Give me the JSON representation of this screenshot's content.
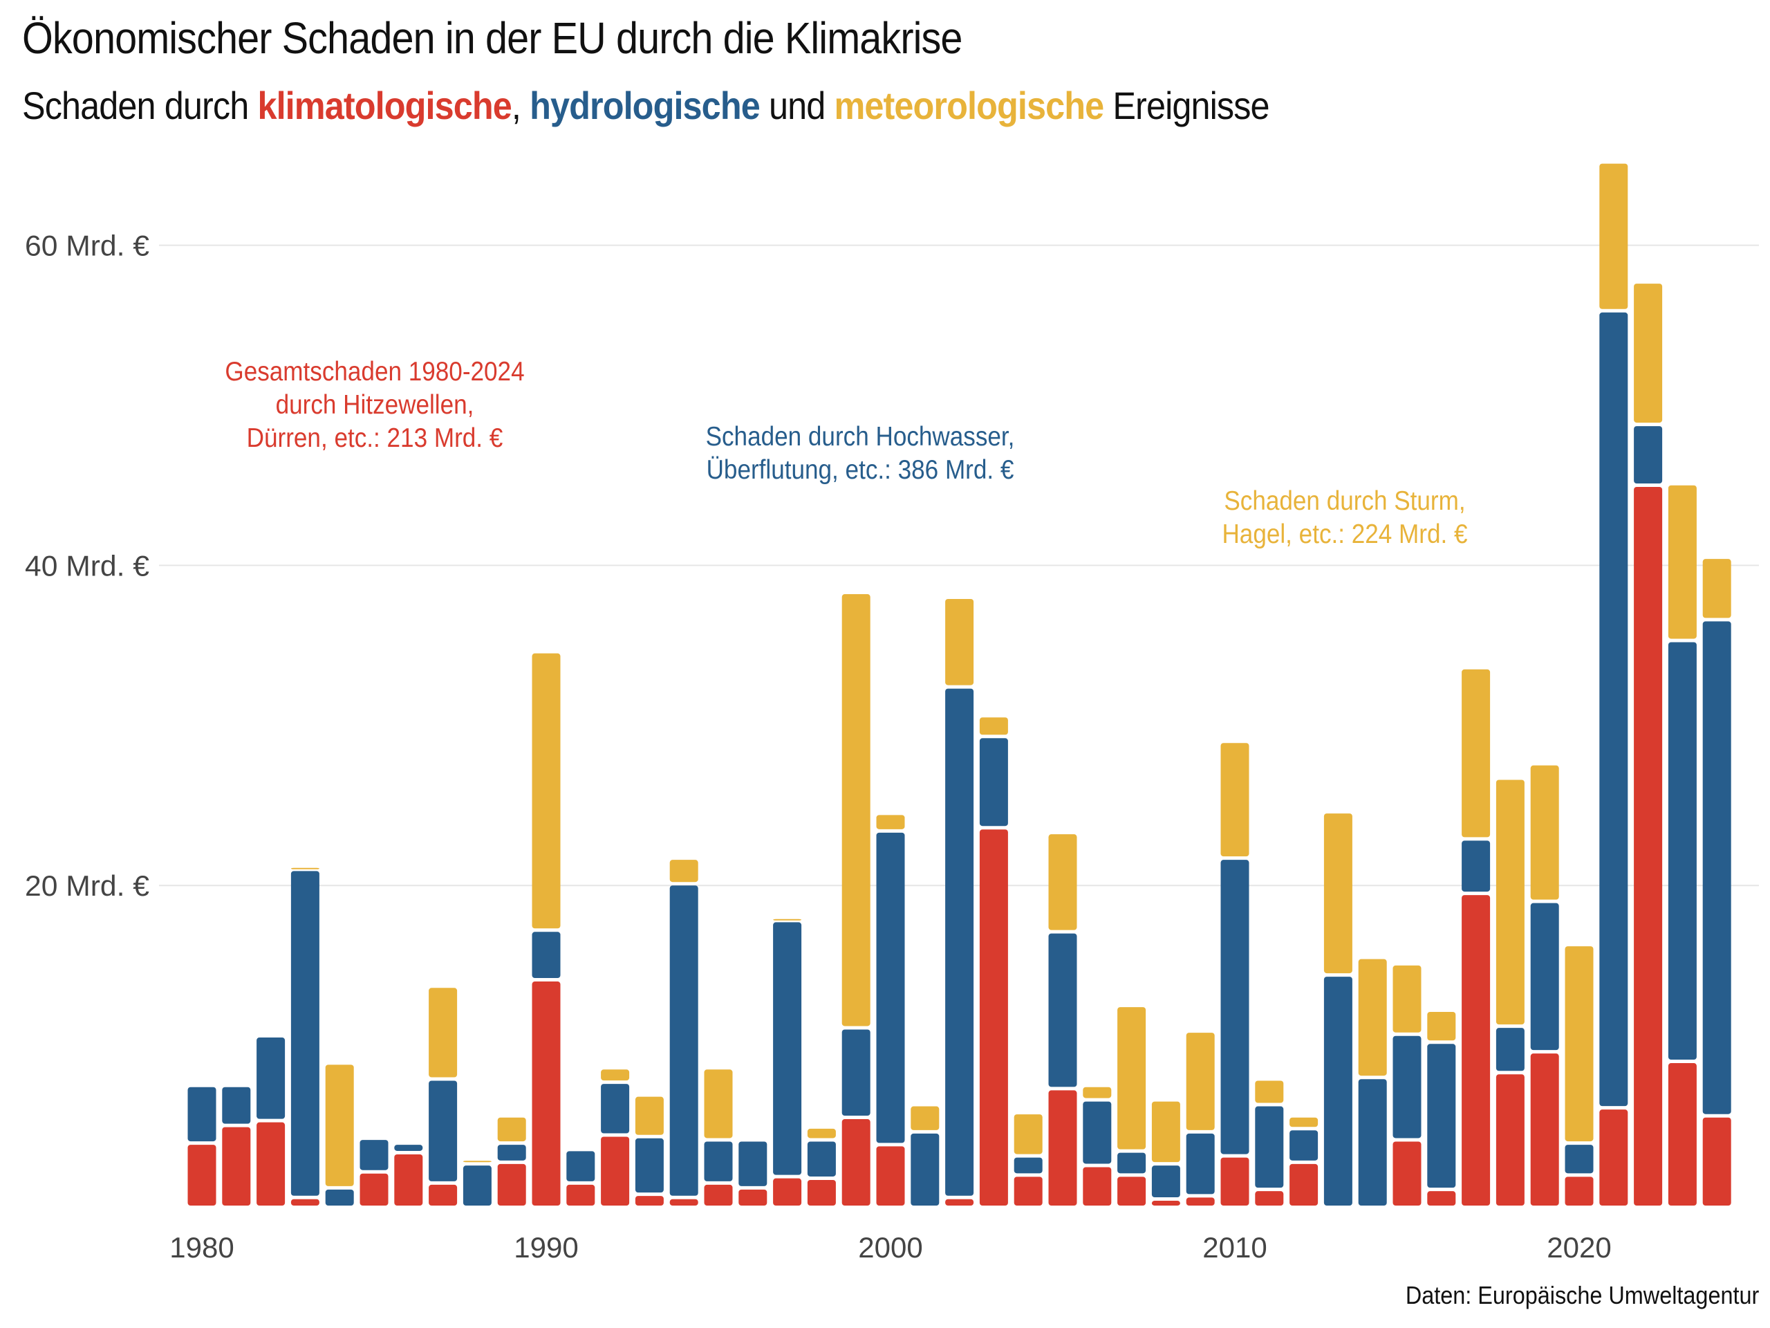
{
  "title": "Ökonomischer Schaden in der EU durch die Klimakrise",
  "subtitle": {
    "prefix": "Schaden durch ",
    "klima": "klimatologische",
    "sep": ", ",
    "hydro": "hydrologische",
    "und": " und ",
    "meteo": "meteorologische",
    "suffix": " Ereignisse"
  },
  "annotations": {
    "klima": [
      "Gesamtschaden 1980-2024",
      "durch Hitzewellen,",
      "Dürren, etc.: 213 Mrd. €"
    ],
    "hydro": [
      "Schaden durch Hochwasser,",
      "Überflutung, etc.: 386 Mrd. €"
    ],
    "meteo": [
      "Schaden durch Sturm,",
      "Hagel, etc.: 224 Mrd. €"
    ]
  },
  "source": "Daten: Europäische Umweltagentur",
  "colors": {
    "klimatologisch": "#d93b2e",
    "hydrologisch": "#275d8c",
    "meteorologisch": "#e8b33a"
  },
  "chart_data": {
    "type": "bar",
    "stacked": true,
    "title": "Ökonomischer Schaden in der EU durch die Klimakrise",
    "xlabel": "",
    "ylabel": "",
    "ylim": [
      0,
      66
    ],
    "yticks": [
      20,
      40,
      60
    ],
    "ytick_labels": [
      "20 Mrd. €",
      "40 Mrd. €",
      "60 Mrd. €"
    ],
    "xticks": [
      1980,
      1990,
      2000,
      2010,
      2020
    ],
    "xtick_labels": [
      "1980",
      "1990",
      "2000",
      "2010",
      "2020"
    ],
    "grid": true,
    "legend": "none (colored words in subtitle)",
    "x": [
      1980,
      1981,
      1982,
      1983,
      1984,
      1985,
      1986,
      1987,
      1988,
      1989,
      1990,
      1991,
      1992,
      1993,
      1994,
      1995,
      1996,
      1997,
      1998,
      1999,
      2000,
      2001,
      2002,
      2003,
      2004,
      2005,
      2006,
      2007,
      2008,
      2009,
      2010,
      2011,
      2012,
      2013,
      2014,
      2015,
      2016,
      2017,
      2018,
      2019,
      2020,
      2021,
      2022,
      2023,
      2024
    ],
    "series": [
      {
        "name": "klimatologische",
        "color": "#d93b2e",
        "values": [
          3.8,
          4.9,
          5.2,
          0.4,
          0,
          2.0,
          3.2,
          1.3,
          0,
          2.6,
          14.0,
          1.3,
          4.3,
          0.6,
          0.4,
          1.3,
          1.0,
          1.7,
          1.6,
          5.4,
          3.7,
          0,
          0.4,
          23.5,
          1.8,
          7.2,
          2.4,
          1.8,
          0.3,
          0.5,
          3.0,
          0.9,
          2.6,
          0,
          0,
          4.0,
          0.9,
          19.4,
          8.2,
          9.5,
          1.8,
          6.0,
          44.9,
          8.9,
          5.5
        ]
      },
      {
        "name": "hydrologische",
        "color": "#275d8c",
        "values": [
          3.6,
          2.5,
          5.3,
          20.5,
          1.0,
          2.1,
          0.6,
          6.5,
          2.5,
          1.2,
          3.1,
          2.1,
          3.3,
          3.6,
          19.6,
          2.7,
          3.0,
          16.0,
          2.4,
          5.6,
          19.6,
          4.5,
          31.9,
          5.7,
          1.2,
          9.8,
          4.1,
          1.5,
          2.2,
          4.0,
          18.6,
          5.3,
          2.1,
          14.3,
          7.9,
          6.6,
          9.2,
          3.4,
          2.9,
          9.4,
          2.0,
          49.8,
          3.8,
          26.3,
          31.0
        ]
      },
      {
        "name": "meteorologische",
        "color": "#e8b33a",
        "values": [
          0,
          0,
          0,
          0.2,
          7.8,
          0,
          0,
          5.8,
          0.3,
          1.7,
          17.4,
          0,
          0.9,
          2.6,
          1.6,
          4.5,
          0,
          0.2,
          0.8,
          27.2,
          1.1,
          1.7,
          5.6,
          1.3,
          2.7,
          6.2,
          0.9,
          9.1,
          4.0,
          6.3,
          7.3,
          1.6,
          0.8,
          10.2,
          7.5,
          4.4,
          2.0,
          10.7,
          15.5,
          8.6,
          12.4,
          9.3,
          8.9,
          9.8,
          3.9
        ]
      }
    ]
  }
}
